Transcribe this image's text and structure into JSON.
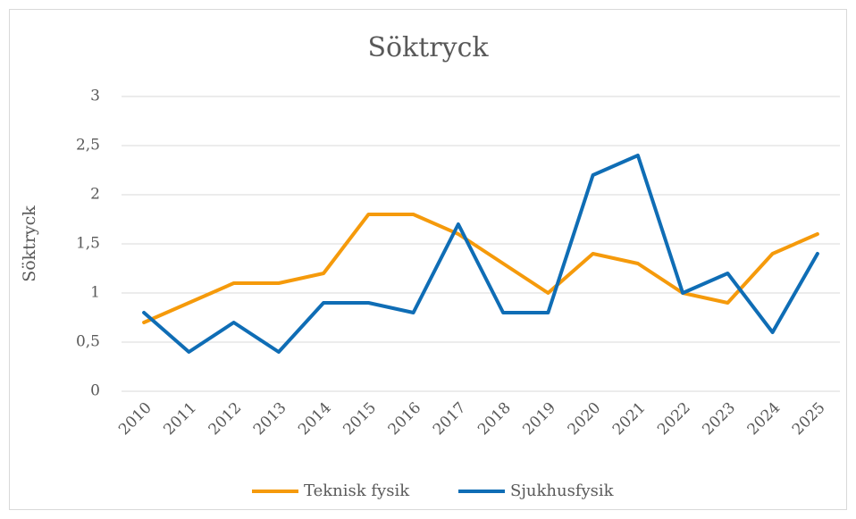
{
  "chart_data": {
    "type": "line",
    "title": "Söktryck",
    "y_label": "Söktryck",
    "categories": [
      "2010",
      "2011",
      "2012",
      "2013",
      "2014",
      "2015",
      "2016",
      "2017",
      "2018",
      "2019",
      "2020",
      "2021",
      "2022",
      "2023",
      "2024",
      "2025"
    ],
    "series": [
      {
        "name": "Teknisk fysik",
        "color": "#f59a0b",
        "values": [
          0.7,
          0.9,
          1.1,
          1.1,
          1.2,
          1.8,
          1.8,
          1.6,
          1.3,
          1.0,
          1.4,
          1.3,
          1.0,
          0.9,
          1.4,
          1.6
        ]
      },
      {
        "name": "Sjukhusfysik",
        "color": "#0f6db5",
        "values": [
          0.8,
          0.4,
          0.7,
          0.4,
          0.9,
          0.9,
          0.8,
          1.7,
          0.8,
          0.8,
          2.2,
          2.4,
          1.0,
          1.2,
          0.6,
          1.4
        ]
      }
    ],
    "ylim": [
      0,
      3
    ],
    "yticks": [
      0,
      {
        "value": 0.5,
        "label": "0,5"
      },
      1,
      {
        "value": 1.5,
        "label": "1,5"
      },
      2,
      {
        "value": 2.5,
        "label": "2,5"
      },
      3
    ],
    "grid": true,
    "legend": "bottom"
  }
}
